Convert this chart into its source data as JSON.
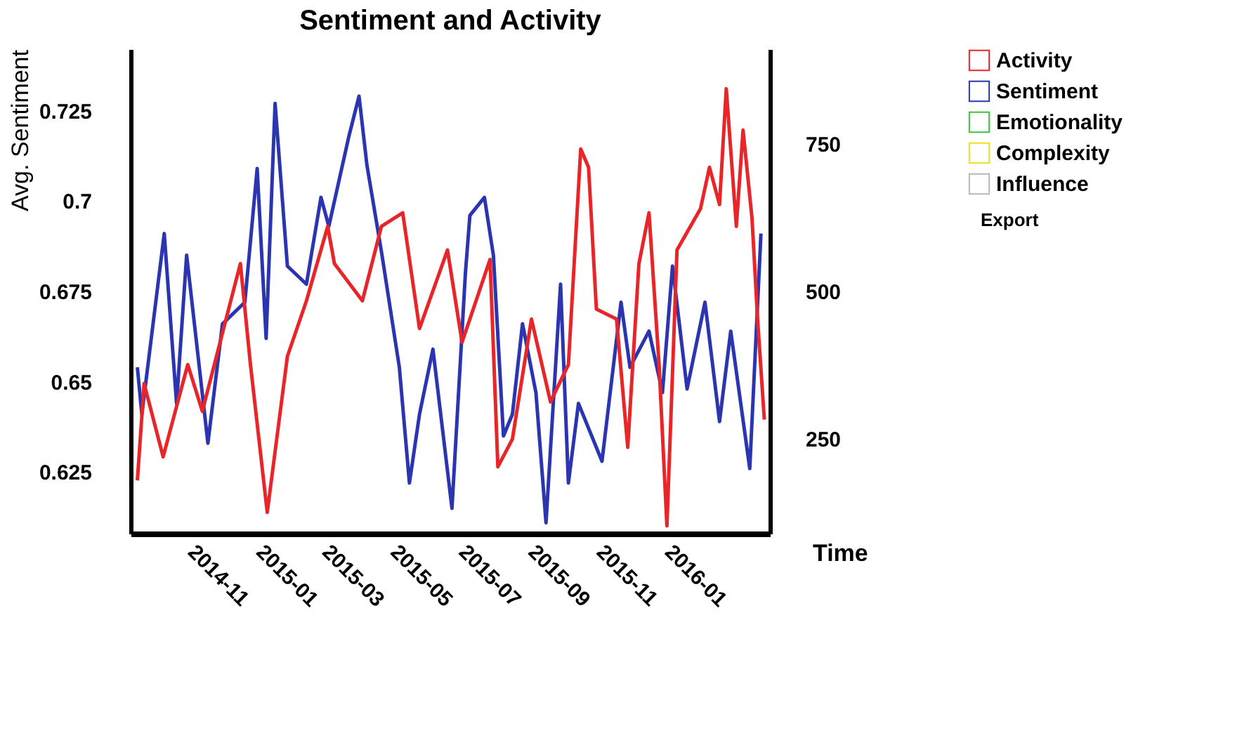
{
  "chart_data": {
    "type": "line",
    "title": "Sentiment and Activity",
    "xlabel": "Time",
    "ylabel": "Avg. Sentiment",
    "xlim": [
      "2014-09-08",
      "2016-04-01"
    ],
    "xticks": [
      {
        "value": "2014-11-01",
        "label": "2014-11"
      },
      {
        "value": "2015-01-01",
        "label": "2015-01"
      },
      {
        "value": "2015-03-01",
        "label": "2015-03"
      },
      {
        "value": "2015-05-01",
        "label": "2015-05"
      },
      {
        "value": "2015-07-01",
        "label": "2015-07"
      },
      {
        "value": "2015-09-01",
        "label": "2015-09"
      },
      {
        "value": "2015-11-01",
        "label": "2015-11"
      },
      {
        "value": "2016-01-01",
        "label": "2016-01"
      }
    ],
    "ylim": [
      0.608,
      0.742
    ],
    "yticks": [
      0.625,
      0.65,
      0.675,
      0.7,
      0.725
    ],
    "y2lim": [
      90,
      910
    ],
    "y2ticks": [
      250,
      500,
      750
    ],
    "grid": false,
    "legend": "right",
    "line_style": "solid",
    "marker": "none",
    "annotations": [
      "Export"
    ],
    "series": [
      {
        "name": "Activity",
        "color": "#e8262a",
        "axis": "y2",
        "x": [
          "2014-09-14",
          "2014-09-20",
          "2014-10-07",
          "2014-10-29",
          "2014-11-11",
          "2014-12-15",
          "2014-12-24",
          "2015-01-08",
          "2015-01-26",
          "2015-02-12",
          "2015-03-03",
          "2015-03-09",
          "2015-04-03",
          "2015-04-20",
          "2015-05-09",
          "2015-05-24",
          "2015-06-18",
          "2015-07-01",
          "2015-07-26",
          "2015-08-02",
          "2015-08-15",
          "2015-09-01",
          "2015-09-18",
          "2015-10-04",
          "2015-10-15",
          "2015-10-22",
          "2015-10-29",
          "2015-11-16",
          "2015-11-26",
          "2015-12-06",
          "2015-12-15",
          "2015-12-24",
          "2015-12-31",
          "2016-01-09",
          "2016-01-30",
          "2016-02-07",
          "2016-02-16",
          "2016-02-22",
          "2016-03-02",
          "2016-03-08",
          "2016-03-16",
          "2016-03-21",
          "2016-03-27"
        ],
        "values": [
          180,
          344,
          220,
          376,
          297,
          547,
          376,
          126,
          390,
          484,
          610,
          547,
          484,
          610,
          633,
          437,
          570,
          414,
          554,
          203,
          250,
          453,
          313,
          376,
          741,
          710,
          470,
          453,
          236,
          547,
          633,
          376,
          103,
          570,
          640,
          710,
          647,
          843,
          610,
          773,
          624,
          453,
          283
        ]
      },
      {
        "name": "Sentiment",
        "color": "#2b35b0",
        "axis": "y",
        "x": [
          "2014-09-14",
          "2014-09-18",
          "2014-10-08",
          "2014-10-19",
          "2014-10-28",
          "2014-11-16",
          "2014-11-29",
          "2014-12-19",
          "2014-12-30",
          "2015-01-07",
          "2015-01-15",
          "2015-01-26",
          "2015-02-12",
          "2015-02-25",
          "2015-03-04",
          "2015-03-22",
          "2015-03-31",
          "2015-04-07",
          "2015-04-20",
          "2015-05-06",
          "2015-05-15",
          "2015-05-24",
          "2015-06-05",
          "2015-06-22",
          "2015-07-04",
          "2015-07-08",
          "2015-07-21",
          "2015-07-29",
          "2015-08-07",
          "2015-08-15",
          "2015-08-24",
          "2015-09-05",
          "2015-09-14",
          "2015-09-27",
          "2015-10-04",
          "2015-10-13",
          "2015-11-03",
          "2015-11-20",
          "2015-11-28",
          "2015-12-15",
          "2015-12-27",
          "2016-01-05",
          "2016-01-18",
          "2016-02-03",
          "2016-02-16",
          "2016-02-26",
          "2016-03-14",
          "2016-03-24"
        ],
        "values": [
          0.654,
          0.641,
          0.691,
          0.644,
          0.685,
          0.633,
          0.666,
          0.672,
          0.709,
          0.662,
          0.727,
          0.682,
          0.677,
          0.701,
          0.693,
          0.718,
          0.729,
          0.71,
          0.686,
          0.654,
          0.622,
          0.641,
          0.659,
          0.615,
          0.68,
          0.696,
          0.701,
          0.685,
          0.635,
          0.641,
          0.666,
          0.647,
          0.611,
          0.677,
          0.622,
          0.644,
          0.628,
          0.672,
          0.654,
          0.664,
          0.647,
          0.682,
          0.648,
          0.672,
          0.639,
          0.664,
          0.626,
          0.691
        ]
      },
      {
        "name": "Emotionality",
        "color": "#3cc23c",
        "axis": "y"
      },
      {
        "name": "Complexity",
        "color": "#f0e020",
        "axis": "y"
      },
      {
        "name": "Influence",
        "color": "#b8b8b8",
        "axis": "y"
      }
    ]
  }
}
